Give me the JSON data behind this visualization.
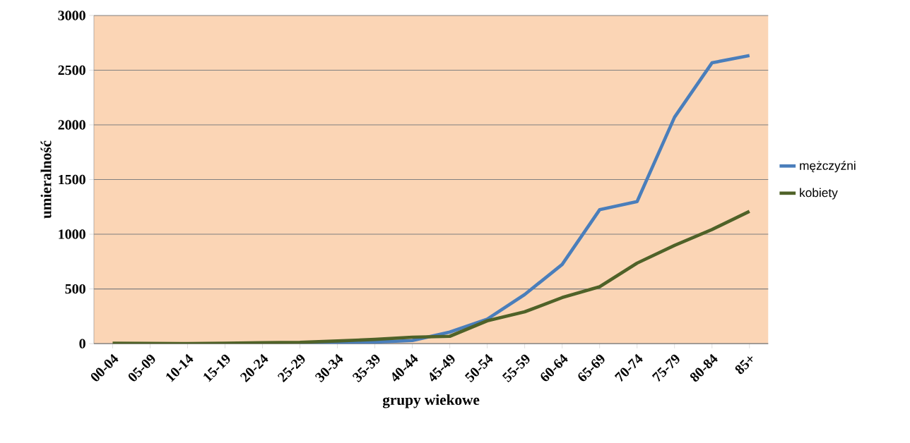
{
  "chart_data": {
    "type": "line",
    "xlabel": "grupy wiekowe",
    "ylabel": "umieralność",
    "categories": [
      "00-04",
      "05-09",
      "10-14",
      "15-19",
      "20-24",
      "25-29",
      "30-34",
      "35-39",
      "40-44",
      "45-49",
      "50-54",
      "55-59",
      "60-64",
      "65-69",
      "70-74",
      "75-79",
      "80-84",
      "85+"
    ],
    "series": [
      {
        "name": "mężczyźni",
        "color": "#4a7ebb",
        "values": [
          null,
          null,
          null,
          null,
          null,
          4,
          8,
          15,
          28,
          106,
          224,
          449,
          724,
          1224,
          1299,
          2070,
          2567,
          2634
        ]
      },
      {
        "name": "kobiety",
        "color": "#4f6228",
        "values": [
          3,
          2,
          0,
          4,
          8,
          12,
          24,
          39,
          59,
          67,
          209,
          291,
          421,
          520,
          736,
          898,
          1043,
          1209
        ]
      }
    ],
    "ylim": [
      0,
      3000
    ],
    "yticks": [
      0,
      500,
      1000,
      1500,
      2000,
      2500,
      3000
    ],
    "grid": "y",
    "legend": "right",
    "marker": "none",
    "line_style": "solid"
  }
}
